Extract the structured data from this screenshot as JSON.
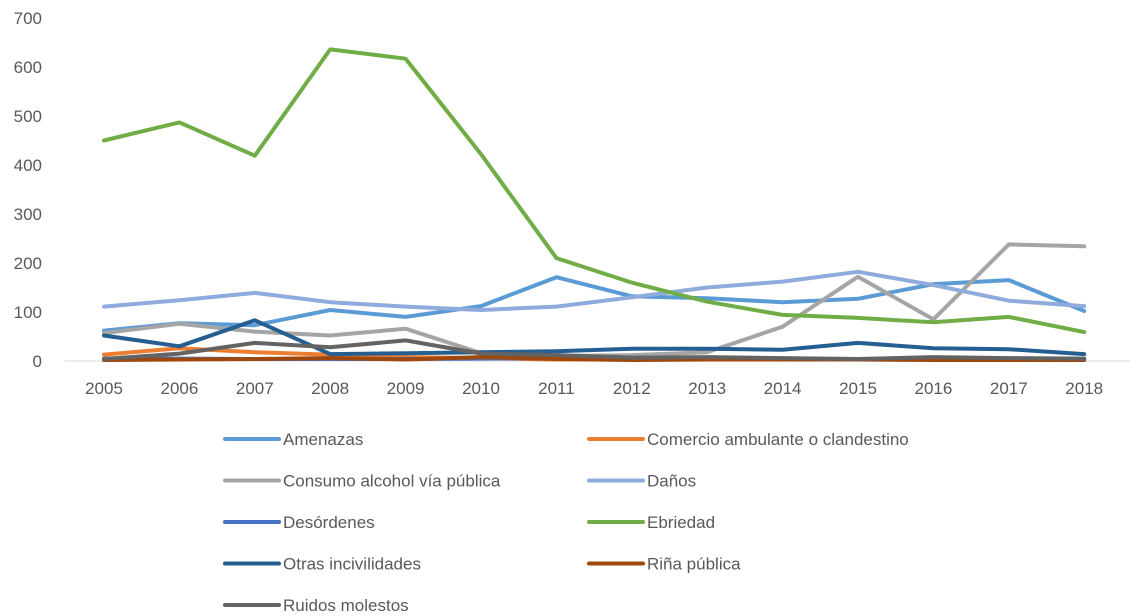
{
  "chart_data": {
    "type": "line",
    "title": "",
    "xlabel": "",
    "ylabel": "",
    "ylim": [
      0,
      700
    ],
    "yticks": [
      0,
      100,
      200,
      300,
      400,
      500,
      600,
      700
    ],
    "grid": "none",
    "legend_position": "bottom",
    "x": [
      "2005",
      "2006",
      "2007",
      "2008",
      "2009",
      "2010",
      "2011",
      "2012",
      "2013",
      "2014",
      "2015",
      "2016",
      "2017",
      "2018"
    ],
    "series": [
      {
        "name": "Amenazas",
        "color": "#5B9BD5",
        "values": [
          62,
          77,
          73,
          104,
          90,
          112,
          171,
          132,
          128,
          120,
          127,
          157,
          165,
          102
        ]
      },
      {
        "name": "Comercio ambulante o clandestino",
        "color": "#ED7D31",
        "values": [
          13,
          26,
          18,
          13,
          8,
          6,
          3,
          3,
          3,
          3,
          3,
          3,
          3,
          3
        ]
      },
      {
        "name": "Consumo alcohol vía pública",
        "color": "#A5A5A5",
        "values": [
          57,
          76,
          60,
          52,
          66,
          16,
          10,
          12,
          18,
          70,
          172,
          85,
          238,
          234
        ]
      },
      {
        "name": "Daños",
        "color": "#8FAADC",
        "values": [
          111,
          124,
          139,
          120,
          111,
          104,
          111,
          130,
          150,
          162,
          182,
          155,
          123,
          112
        ]
      },
      {
        "name": "Desórdenes",
        "color": "#4472C4",
        "values": [
          5,
          5,
          4,
          4,
          4,
          5,
          6,
          4,
          4,
          4,
          4,
          4,
          4,
          4
        ]
      },
      {
        "name": "Ebriedad",
        "color": "#70AD47",
        "values": [
          450,
          487,
          419,
          636,
          617,
          422,
          210,
          160,
          121,
          94,
          88,
          79,
          90,
          59
        ]
      },
      {
        "name": "Otras incivilidades",
        "color": "#255E91",
        "values": [
          52,
          30,
          83,
          14,
          16,
          18,
          20,
          25,
          25,
          23,
          37,
          26,
          24,
          14
        ]
      },
      {
        "name": "Riña pública",
        "color": "#9E480E",
        "values": [
          2,
          3,
          4,
          6,
          3,
          8,
          4,
          2,
          3,
          3,
          3,
          2,
          2,
          2
        ]
      },
      {
        "name": "Ruidos molestos",
        "color": "#636363",
        "values": [
          4,
          15,
          37,
          28,
          42,
          15,
          12,
          7,
          8,
          6,
          4,
          8,
          6,
          5
        ]
      }
    ]
  }
}
